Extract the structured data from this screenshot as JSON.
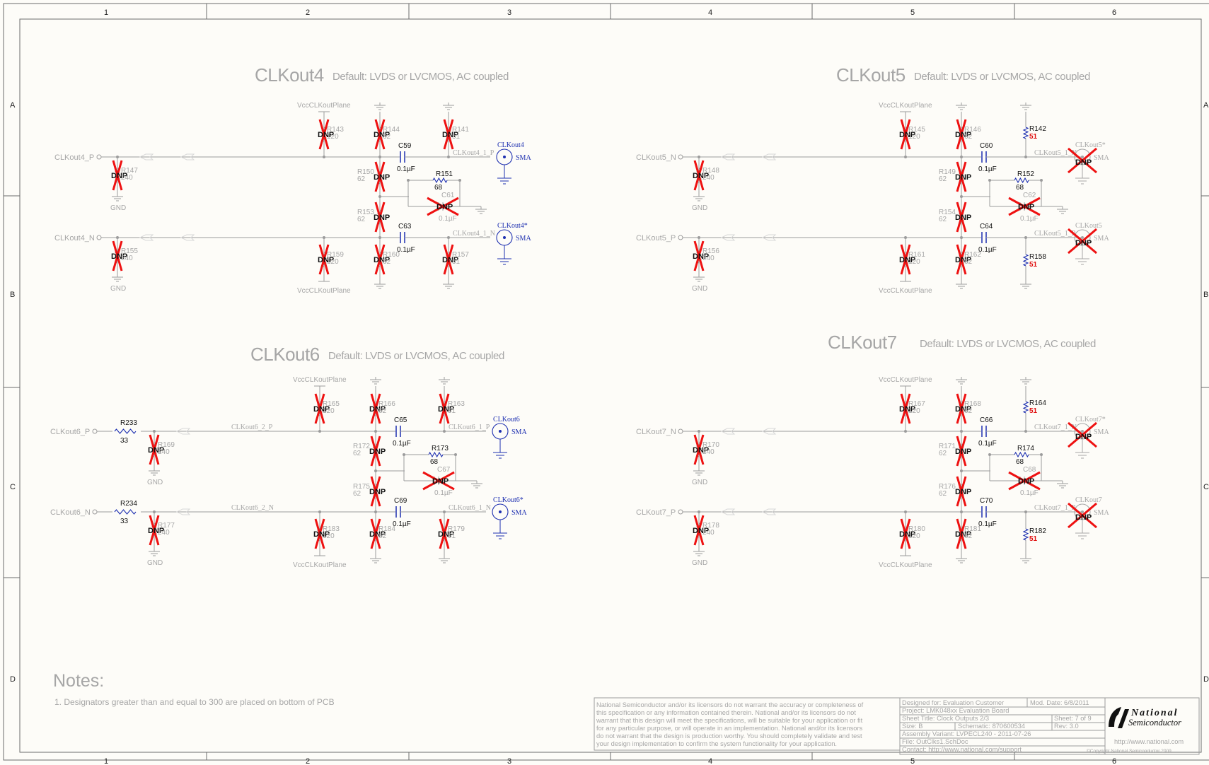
{
  "border": {
    "cols": [
      "1",
      "2",
      "3",
      "4",
      "5",
      "6"
    ],
    "rows": [
      "A",
      "B",
      "C",
      "D"
    ]
  },
  "sections": [
    {
      "title": "CLKout4",
      "subtitle": "Default: LVDS or LVCMOS, AC coupled",
      "vcc_top": "VccCLKoutPlane",
      "vcc_bottom": "VccCLKoutPlane",
      "net_p": "CLKout4_P",
      "net_n": "CLKout4_N",
      "gnd": "GND",
      "left_res_p": {
        "ref": "R147",
        "val": "240"
      },
      "left_res_n": {
        "ref": "R155",
        "val": "240"
      },
      "series_p": null,
      "series_n": null,
      "mid_net_p": "",
      "mid_net_n": "",
      "pull_up_p": {
        "ref": "R143",
        "val": "120"
      },
      "pull_down_p": {
        "ref": "R144",
        "val": "62"
      },
      "term_p": {
        "ref": "R141",
        "val": "51"
      },
      "pull_up_n": {
        "ref": "R159",
        "val": "120"
      },
      "pull_down_n": {
        "ref": "R160",
        "val": "62"
      },
      "term_n": {
        "ref": "R157",
        "val": "51"
      },
      "mid_top": {
        "ref": "R150",
        "val": "62"
      },
      "mid_bot": {
        "ref": "R153",
        "val": "62"
      },
      "cap_p": {
        "ref": "C59",
        "val": "0.1µF"
      },
      "cap_n": {
        "ref": "C63",
        "val": "0.1µF"
      },
      "diff_res": {
        "ref": "R151",
        "val": "68"
      },
      "diff_cap": {
        "ref": "C61",
        "val": "0.1µF"
      },
      "out_net_p": "CLKout4_1_P",
      "out_net_n": "CLKout4_1_N",
      "conn_p": {
        "ref": "CLKout4",
        "type": "SMA",
        "dnp": false
      },
      "conn_n": {
        "ref": "CLKout4*",
        "type": "SMA",
        "dnp": false
      },
      "load_p": null,
      "load_n": null
    },
    {
      "title": "CLKout5",
      "subtitle": "Default: LVDS or LVCMOS, AC coupled",
      "vcc_top": "VccCLKoutPlane",
      "vcc_bottom": "VccCLKoutPlane",
      "net_p": "CLKout5_N",
      "net_n": "CLKout5_P",
      "gnd": "GND",
      "left_res_p": {
        "ref": "R148",
        "val": "240"
      },
      "left_res_n": {
        "ref": "R156",
        "val": "240"
      },
      "series_p": null,
      "series_n": null,
      "mid_net_p": "",
      "mid_net_n": "",
      "pull_up_p": {
        "ref": "R145",
        "val": "120"
      },
      "pull_down_p": {
        "ref": "R146",
        "val": "62"
      },
      "term_p": null,
      "pull_up_n": {
        "ref": "R161",
        "val": "120"
      },
      "pull_down_n": {
        "ref": "R162",
        "val": "62"
      },
      "term_n": null,
      "mid_top": {
        "ref": "R149",
        "val": "62"
      },
      "mid_bot": {
        "ref": "R154",
        "val": "62"
      },
      "cap_p": {
        "ref": "C60",
        "val": "0.1µF"
      },
      "cap_n": {
        "ref": "C64",
        "val": "0.1µF"
      },
      "diff_res": {
        "ref": "R152",
        "val": "68"
      },
      "diff_cap": {
        "ref": "C62",
        "val": "0.1µF"
      },
      "out_net_p": "CLKout5_1_N",
      "out_net_n": "CLKout5_1_P",
      "conn_p": {
        "ref": "CLKout5*",
        "type": "SMA",
        "dnp": true
      },
      "conn_n": {
        "ref": "CLKout5",
        "type": "SMA",
        "dnp": true
      },
      "load_p": {
        "ref": "R142",
        "val": "51"
      },
      "load_n": {
        "ref": "R158",
        "val": "51"
      }
    },
    {
      "title": "CLKout6",
      "subtitle": "Default: LVDS or LVCMOS, AC coupled",
      "vcc_top": "VccCLKoutPlane",
      "vcc_bottom": "VccCLKoutPlane",
      "net_p": "CLKout6_P",
      "net_n": "CLKout6_N",
      "gnd": "GND",
      "left_res_p": {
        "ref": "R169",
        "val": "240"
      },
      "left_res_n": {
        "ref": "R177",
        "val": "240"
      },
      "series_p": {
        "ref": "R233",
        "val": "33"
      },
      "series_n": {
        "ref": "R234",
        "val": "33"
      },
      "mid_net_p": "CLKout6_2_P",
      "mid_net_n": "CLKout6_2_N",
      "pull_up_p": {
        "ref": "R165",
        "val": "120"
      },
      "pull_down_p": {
        "ref": "R166",
        "val": "62"
      },
      "term_p": {
        "ref": "R163",
        "val": "51"
      },
      "pull_up_n": {
        "ref": "R183",
        "val": "120"
      },
      "pull_down_n": {
        "ref": "R184",
        "val": "62"
      },
      "term_n": {
        "ref": "R179",
        "val": "51"
      },
      "mid_top": {
        "ref": "R172",
        "val": "62"
      },
      "mid_bot": {
        "ref": "R175",
        "val": "62"
      },
      "cap_p": {
        "ref": "C65",
        "val": "0.1µF"
      },
      "cap_n": {
        "ref": "C69",
        "val": "0.1µF"
      },
      "diff_res": {
        "ref": "R173",
        "val": "68"
      },
      "diff_cap": {
        "ref": "C67",
        "val": "0.1µF"
      },
      "out_net_p": "CLKout6_1_P",
      "out_net_n": "CLKout6_1_N",
      "conn_p": {
        "ref": "CLKout6",
        "type": "SMA",
        "dnp": false
      },
      "conn_n": {
        "ref": "CLKout6*",
        "type": "SMA",
        "dnp": false
      },
      "load_p": null,
      "load_n": null
    },
    {
      "title": "CLKout7",
      "subtitle": "Default: LVDS or LVCMOS, AC coupled",
      "vcc_top": "VccCLKoutPlane",
      "vcc_bottom": "VccCLKoutPlane",
      "net_p": "CLKout7_N",
      "net_n": "CLKout7_P",
      "gnd": "GND",
      "left_res_p": {
        "ref": "R170",
        "val": "240"
      },
      "left_res_n": {
        "ref": "R178",
        "val": "240"
      },
      "series_p": null,
      "series_n": null,
      "mid_net_p": "",
      "mid_net_n": "",
      "pull_up_p": {
        "ref": "R167",
        "val": "120"
      },
      "pull_down_p": {
        "ref": "R168",
        "val": "62"
      },
      "term_p": null,
      "pull_up_n": {
        "ref": "R180",
        "val": "120"
      },
      "pull_down_n": {
        "ref": "R181",
        "val": "62"
      },
      "term_n": null,
      "mid_top": {
        "ref": "R171",
        "val": "62"
      },
      "mid_bot": {
        "ref": "R176",
        "val": "62"
      },
      "cap_p": {
        "ref": "C66",
        "val": "0.1µF"
      },
      "cap_n": {
        "ref": "C70",
        "val": "0.1µF"
      },
      "diff_res": {
        "ref": "R174",
        "val": "68"
      },
      "diff_cap": {
        "ref": "C68",
        "val": "0.1µF"
      },
      "out_net_p": "CLKout7_1_N",
      "out_net_n": "CLKout7_1_P",
      "conn_p": {
        "ref": "CLKout7*",
        "type": "SMA",
        "dnp": true
      },
      "conn_n": {
        "ref": "CLKout7",
        "type": "SMA",
        "dnp": true
      },
      "load_p": {
        "ref": "R164",
        "val": "51"
      },
      "load_n": {
        "ref": "R182",
        "val": "51"
      }
    }
  ],
  "dnp_label": "DNP",
  "notes": {
    "title": "Notes:",
    "items": [
      "1. Designators greater than and equal to 300 are placed on bottom of PCB"
    ]
  },
  "disclaimer": [
    "National Semiconductor and/or its licensors do not warrant the accuracy or completeness of",
    "this specification or any information contained therein. National and/or its licensors do not",
    "warrant that this design will meet the specifications, will be suitable for your application or fit",
    "for any particular purpose, or will operate in an implementation. National and/or its licensors",
    "do not warrant that the design is production worthy. You should completely validate and test",
    "your design implementation to confirm the system functionality for your application."
  ],
  "title_block": {
    "designed_for": "Designed for: Evaluation Customer",
    "mod_date": "Mod. Date: 6/8/2011",
    "project": "Project:  LMK048xx Evaluation Board",
    "sheet_title": "Sheet Title: Clock Outputs 2/3",
    "sheet": "Sheet: 7  of  9",
    "size": "Size: B",
    "schematic": "Schematic: 870600534",
    "rev": "Rev: 3.0",
    "assembly": "Assembly Variant:  LVPECL240 - 2011-07-26",
    "file": "File: OutClks1.SchDoc",
    "contact": "Contact:  http://www.national.com/support",
    "logo_line1": "National",
    "logo_line2": "Semiconductor",
    "url": "http://www.national.com",
    "copyright": "©Copyright  National Semiconductor  2009"
  },
  "colors": {
    "border": "#6b6b6b",
    "wire": "#9c9c9c",
    "gray_text": "#a6a6a6",
    "dnp_cross": "#ee1111",
    "component_blue": "#1d2fb0",
    "value_red": "#e01010",
    "label_dark": "#111111"
  }
}
